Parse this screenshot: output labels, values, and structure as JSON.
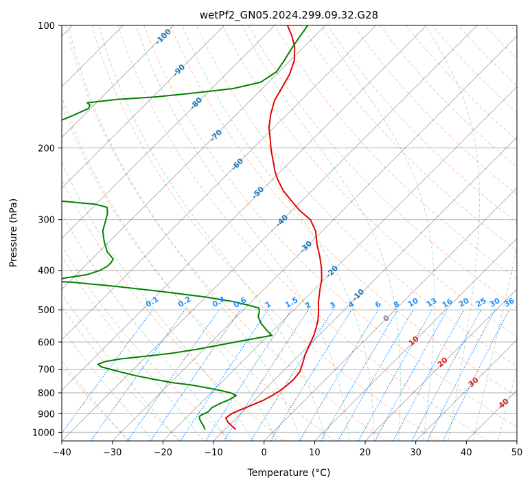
{
  "chart_data": {
    "type": "line",
    "title": "wetPf2_GN05.2024.299.09.32.G28",
    "xlabel": "Temperature (°C)",
    "ylabel": "Pressure (hPa)",
    "xlim": [
      -40,
      50
    ],
    "ylim": [
      1050,
      100
    ],
    "yscale": "log",
    "grid": true,
    "x_ticks": [
      -40,
      -30,
      -20,
      -10,
      0,
      10,
      20,
      30,
      40,
      50
    ],
    "y_ticks": [
      100,
      200,
      300,
      400,
      500,
      600,
      700,
      800,
      900,
      1000
    ],
    "skew_deg": 45,
    "series": [
      {
        "role": "temperature",
        "color": "#e60000",
        "points": [
          [
            -7.8,
            985
          ],
          [
            -9.3,
            965
          ],
          [
            -10.8,
            945
          ],
          [
            -12.1,
            922
          ],
          [
            -11.8,
            900
          ],
          [
            -10.8,
            880
          ],
          [
            -9.6,
            860
          ],
          [
            -8.2,
            835
          ],
          [
            -7.3,
            810
          ],
          [
            -6.8,
            790
          ],
          [
            -6.5,
            770
          ],
          [
            -6.3,
            740
          ],
          [
            -6.6,
            710
          ],
          [
            -7.6,
            680
          ],
          [
            -8.9,
            645
          ],
          [
            -10.0,
            610
          ],
          [
            -11.0,
            578
          ],
          [
            -12.0,
            555
          ],
          [
            -13.2,
            530
          ],
          [
            -14.8,
            505
          ],
          [
            -16.6,
            480
          ],
          [
            -18.6,
            450
          ],
          [
            -20.6,
            420
          ],
          [
            -22.8,
            395
          ],
          [
            -25.4,
            370
          ],
          [
            -28.4,
            345
          ],
          [
            -31.3,
            320
          ],
          [
            -34.6,
            300
          ],
          [
            -38.5,
            285
          ],
          [
            -42.0,
            270
          ],
          [
            -45.6,
            255
          ],
          [
            -48.8,
            240
          ],
          [
            -51.2,
            228
          ],
          [
            -53.6,
            215
          ],
          [
            -56.0,
            203
          ],
          [
            -58.5,
            190
          ],
          [
            -61.0,
            178
          ],
          [
            -63.3,
            165
          ],
          [
            -65.2,
            153
          ],
          [
            -66.3,
            142
          ],
          [
            -67.4,
            132
          ],
          [
            -69.2,
            122
          ],
          [
            -71.8,
            113
          ],
          [
            -74.6,
            106
          ],
          [
            -77.5,
            100
          ]
        ]
      },
      {
        "role": "dewpoint",
        "color": "#008000",
        "points": [
          [
            -13.9,
            985
          ],
          [
            -14.9,
            965
          ],
          [
            -16.1,
            945
          ],
          [
            -17.2,
            925
          ],
          [
            -17.6,
            915
          ],
          [
            -17.5,
            905
          ],
          [
            -16.8,
            890
          ],
          [
            -16.9,
            870
          ],
          [
            -16.1,
            850
          ],
          [
            -15.0,
            830
          ],
          [
            -14.5,
            812
          ],
          [
            -16.1,
            800
          ],
          [
            -18.4,
            790
          ],
          [
            -21.6,
            778
          ],
          [
            -25.5,
            765
          ],
          [
            -29.7,
            755
          ],
          [
            -34.2,
            740
          ],
          [
            -38.5,
            725
          ],
          [
            -43.4,
            705
          ],
          [
            -46.9,
            690
          ],
          [
            -48.0,
            680
          ],
          [
            -47.1,
            670
          ],
          [
            -44.5,
            660
          ],
          [
            -40.1,
            650
          ],
          [
            -35.8,
            640
          ],
          [
            -31.3,
            625
          ],
          [
            -25.2,
            600
          ],
          [
            -19.3,
            578
          ],
          [
            -21.5,
            560
          ],
          [
            -23.8,
            540
          ],
          [
            -25.7,
            520
          ],
          [
            -26.5,
            505
          ],
          [
            -27.3,
            495
          ],
          [
            -29.6,
            488
          ],
          [
            -33.3,
            478
          ],
          [
            -40.1,
            465
          ],
          [
            -50.4,
            450
          ],
          [
            -59.8,
            438
          ],
          [
            -69.0,
            428
          ],
          [
            -73.6,
            425
          ],
          [
            -71.7,
            418
          ],
          [
            -67.9,
            410
          ],
          [
            -66.1,
            400
          ],
          [
            -65.5,
            390
          ],
          [
            -65.5,
            382
          ],
          [
            -65.8,
            375
          ],
          [
            -67.0,
            368
          ],
          [
            -68.4,
            360
          ],
          [
            -71.0,
            340
          ],
          [
            -73.4,
            320
          ],
          [
            -74.6,
            305
          ],
          [
            -75.9,
            290
          ],
          [
            -77.2,
            280
          ],
          [
            -80.2,
            275
          ],
          [
            -87.8,
            270
          ],
          [
            -94.6,
            265
          ],
          [
            -101.0,
            262
          ],
          [
            -107.0,
            260
          ]
        ]
      },
      {
        "role": "dewpoint_upper",
        "color": "#008000",
        "points": [
          [
            -108.0,
            230
          ],
          [
            -106.6,
            218
          ],
          [
            -106.1,
            206
          ],
          [
            -106.5,
            194
          ],
          [
            -106.4,
            184
          ],
          [
            -104.6,
            175
          ],
          [
            -102.0,
            166
          ],
          [
            -100.4,
            160
          ],
          [
            -100.8,
            157
          ],
          [
            -101.8,
            155
          ],
          [
            -96.6,
            152
          ],
          [
            -89.6,
            150
          ],
          [
            -83.4,
            147
          ],
          [
            -75.8,
            143
          ],
          [
            -71.6,
            138
          ],
          [
            -70.5,
            130
          ],
          [
            -71.2,
            122
          ],
          [
            -72.1,
            114
          ],
          [
            -72.7,
            108
          ],
          [
            -73.5,
            100
          ]
        ]
      }
    ],
    "dry_adiabat_labels": [
      "-100",
      "-90",
      "-80",
      "-70",
      "-60",
      "-50",
      "-40",
      "-30",
      "-20",
      "-10"
    ],
    "mixing_ratio_labels": [
      "0.1",
      "0.2",
      "0.4",
      "0.6",
      "1",
      "1.5",
      "2",
      "3",
      "4",
      "6",
      "8",
      "10",
      "13",
      "16",
      "20",
      "25",
      "30",
      "36"
    ],
    "moist_adiabat_labels": [
      "0",
      "10",
      "20",
      "30",
      "40"
    ],
    "colors": {
      "isotherm": "#000000",
      "isobar": "#000000",
      "dry_adiabat": "#ff7f50",
      "moist_adiabat": "#3cb371",
      "mixing_ratio": "#1e90ff",
      "dry_adiabat_label": "#1f77b4",
      "moist_adiabat_label": "#d62728",
      "mixing_ratio_label": "#1e90ff",
      "freezing_label": "#808080"
    }
  }
}
